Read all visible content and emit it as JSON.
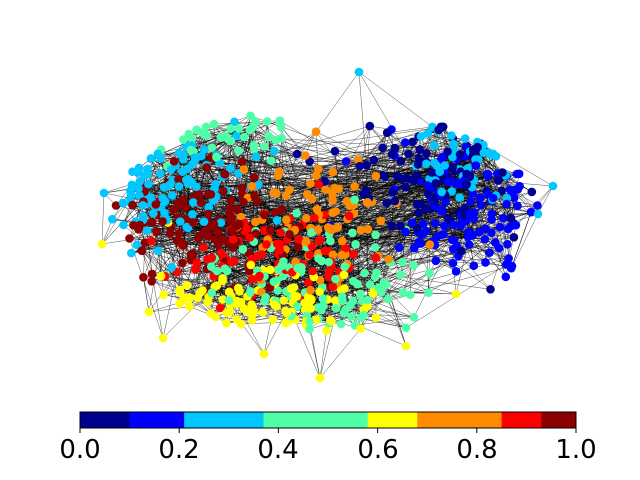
{
  "figure": {
    "kind": "network graph with colorbar",
    "node_count": 900,
    "edge_color": "#000000",
    "node_color_scale": "jet"
  },
  "colorbar": {
    "min": 0.0,
    "max": 1.0,
    "discrete_colors": [
      "#00008f",
      "#0000ff",
      "#00c8ff",
      "#4effa8",
      "#ffff00",
      "#ff8c00",
      "#ff0000",
      "#8b0000"
    ],
    "ticks": [
      "0.0",
      "0.2",
      "0.4",
      "0.6",
      "0.8",
      "1.0"
    ],
    "tick_values": [
      0.0,
      0.2,
      0.4,
      0.6,
      0.8,
      1.0
    ]
  }
}
